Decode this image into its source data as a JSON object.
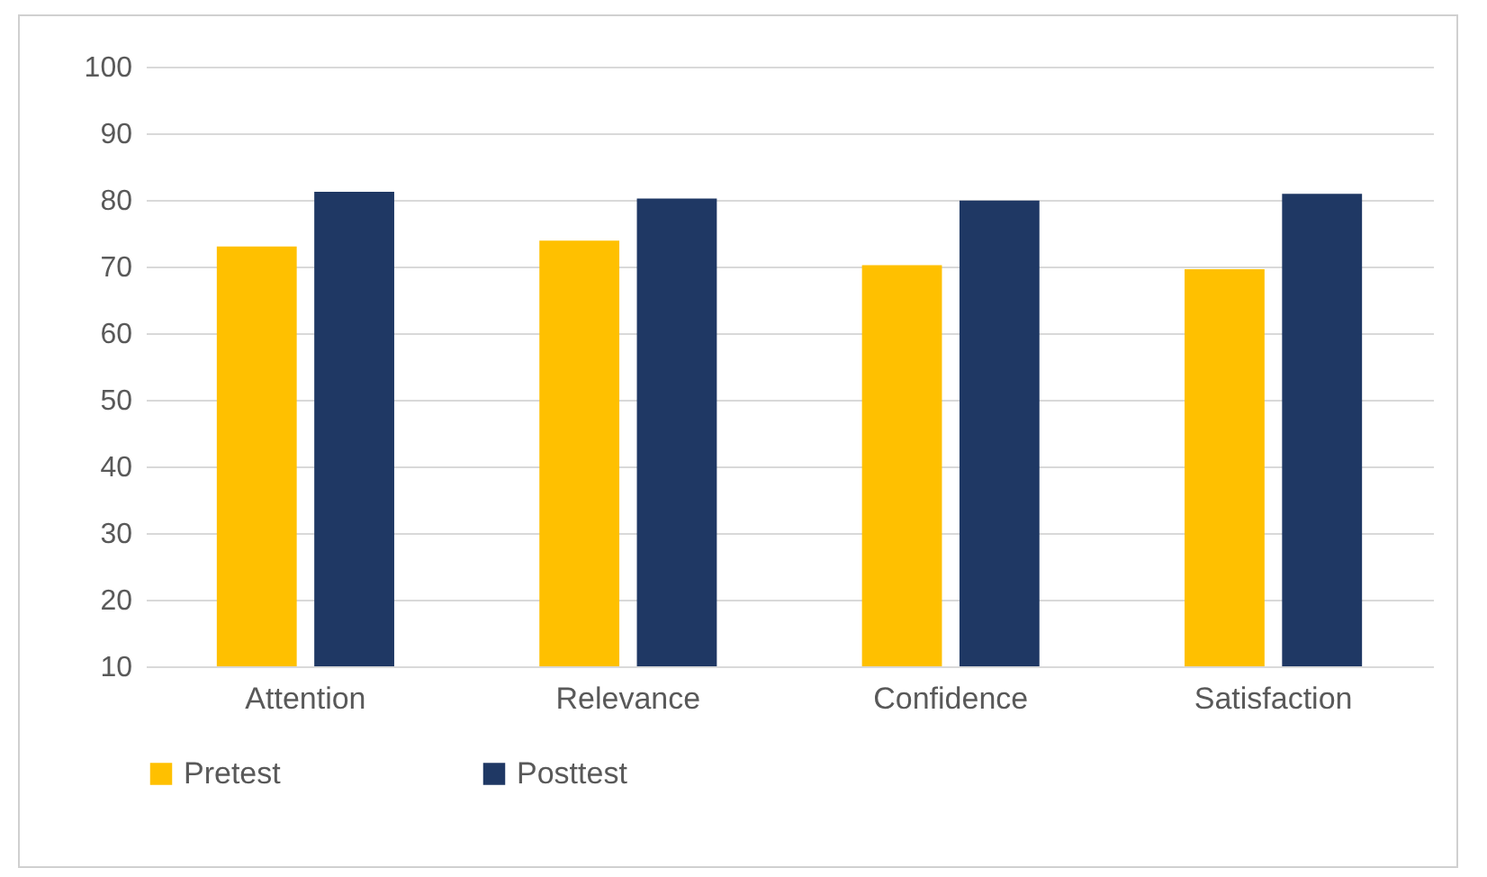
{
  "chart_data": {
    "type": "bar",
    "categories": [
      "Attention",
      "Relevance",
      "Confidence",
      "Satisfaction"
    ],
    "series": [
      {
        "name": "Pretest",
        "color": "#ffc000",
        "values": [
          73.0,
          73.9,
          70.2,
          69.6
        ]
      },
      {
        "name": "Posttest",
        "color": "#1f3864",
        "values": [
          81.2,
          80.2,
          79.9,
          80.9
        ]
      }
    ],
    "ylim": [
      10,
      100
    ],
    "yticks": [
      10,
      20,
      30,
      40,
      50,
      60,
      70,
      80,
      90,
      100
    ],
    "grid": "y",
    "legend": "bottom"
  }
}
